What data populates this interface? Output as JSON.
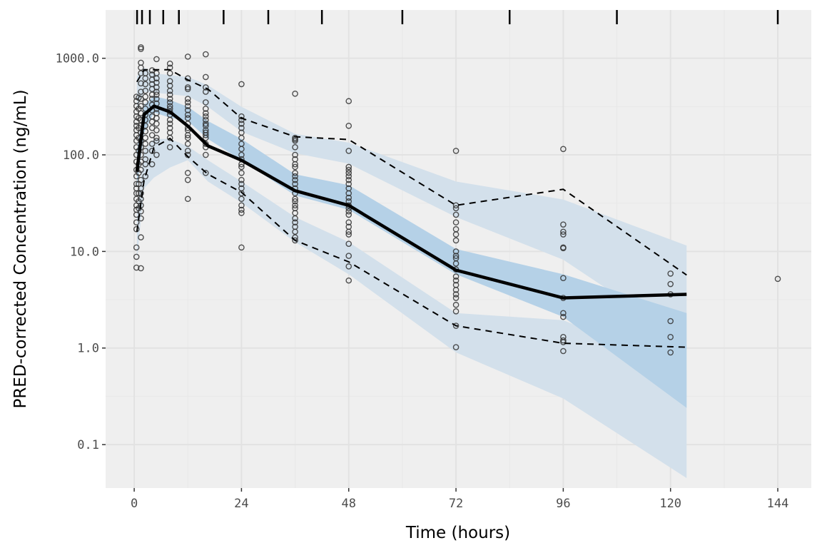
{
  "chart_data": {
    "type": "scatter",
    "xlabel": "Time (hours)",
    "ylabel": "PRED-corrected Concentration (ng/mL)",
    "xlim": [
      -6.4,
      151.5
    ],
    "ylim_log10": [
      -1.45,
      3.5
    ],
    "y_scale": "log10",
    "grid": true,
    "x_ticks": [
      0,
      24,
      48,
      72,
      96,
      120,
      144
    ],
    "x_tick_labels": [
      "0",
      "24",
      "48",
      "72",
      "96",
      "120",
      "144"
    ],
    "y_ticks": [
      1000,
      100,
      10,
      1,
      0.1
    ],
    "y_tick_labels": [
      "1000.0",
      "100.0",
      "10.0",
      "1.0",
      "0.1"
    ],
    "bin_boundaries_rug": [
      0.64,
      1.75,
      3.5,
      6.5,
      10,
      20,
      30,
      42,
      60,
      84,
      108,
      144
    ],
    "colors": {
      "panel": "#efefef",
      "grid": "#e2e2e2",
      "pi_band": "#d3e0eb",
      "median_band": "#b5d1e7",
      "lines": "#000000",
      "points": "#333333"
    },
    "bins": {
      "time": [
        0.6,
        2.2,
        4.4,
        8,
        12,
        16.5,
        24,
        36,
        48,
        72,
        96,
        123.6
      ],
      "obs_p95": [
        570,
        760,
        760,
        760,
        598,
        480,
        240,
        154,
        144,
        30,
        44,
        5.7
      ],
      "obs_p50": [
        67,
        261,
        320,
        279,
        199,
        124,
        88,
        42.5,
        30,
        6.4,
        3.3,
        3.6
      ],
      "obs_p05": [
        16,
        54,
        119,
        148,
        96,
        63,
        41,
        13,
        7.8,
        1.7,
        1.12,
        1.02
      ],
      "sim_p95_ci": [
        [
          300,
          650
        ],
        [
          450,
          800
        ],
        [
          441,
          700
        ],
        [
          425,
          670
        ],
        [
          405,
          640
        ],
        [
          315,
          525
        ],
        [
          174,
          315
        ],
        [
          104,
          165
        ],
        [
          81,
          134
        ],
        [
          22.7,
          53
        ],
        [
          8.2,
          34.5
        ],
        [
          1.16,
          11.5
        ]
      ],
      "sim_p50_ci": [
        [
          45,
          110
        ],
        [
          170,
          330
        ],
        [
          275,
          405
        ],
        [
          243,
          370
        ],
        [
          224,
          315
        ],
        [
          146,
          224
        ],
        [
          88,
          146
        ],
        [
          38,
          63
        ],
        [
          27,
          48.6
        ],
        [
          5.8,
          10.6
        ],
        [
          2.1,
          5.8
        ],
        [
          0.24,
          2.3
        ]
      ],
      "sim_p05_ci": [
        [
          8,
          25
        ],
        [
          45,
          110
        ],
        [
          58,
          146
        ],
        [
          74,
          146
        ],
        [
          88,
          123
        ],
        [
          53,
          88
        ],
        [
          32,
          53
        ],
        [
          12.5,
          22.7
        ],
        [
          5.8,
          12.5
        ],
        [
          0.9,
          2.3
        ],
        [
          0.3,
          1.94
        ],
        [
          0.045,
          0.59
        ]
      ]
    },
    "observations": [
      {
        "time": 0.5,
        "values": [
          400,
          360,
          320,
          280,
          250,
          220,
          200,
          180,
          160,
          140,
          120,
          100,
          85,
          70,
          60,
          50,
          45,
          40,
          35,
          30,
          27,
          24,
          20,
          17,
          11,
          8.8,
          6.8
        ]
      },
      {
        "time": 1,
        "values": [
          390,
          300,
          240,
          190,
          150,
          110,
          80,
          65,
          50,
          40,
          33,
          28
        ]
      },
      {
        "time": 1.5,
        "values": [
          1300,
          1250,
          900,
          800,
          700,
          550,
          450,
          380,
          320,
          270,
          230,
          200,
          170,
          140,
          120,
          100,
          85,
          70,
          55,
          45,
          40,
          35,
          30,
          26,
          22,
          14,
          6.7
        ]
      },
      {
        "time": 2.5,
        "values": [
          700,
          620,
          540,
          460,
          400,
          350,
          300,
          260,
          230,
          200,
          175,
          150,
          130,
          110,
          90,
          80,
          60
        ]
      },
      {
        "time": 4,
        "values": [
          750,
          680,
          600,
          540,
          480,
          420,
          380,
          330,
          290,
          250,
          220,
          190,
          160,
          130,
          110,
          80
        ]
      },
      {
        "time": 5,
        "values": [
          980,
          700,
          620,
          560,
          500,
          450,
          420,
          380,
          340,
          300,
          270,
          240,
          210,
          180,
          150,
          140,
          100
        ]
      },
      {
        "time": 8,
        "values": [
          880,
          800,
          700,
          580,
          520,
          460,
          420,
          380,
          350,
          320,
          300,
          280,
          260,
          230,
          210,
          190,
          170,
          150,
          120
        ]
      },
      {
        "time": 12,
        "values": [
          1040,
          620,
          500,
          480,
          380,
          350,
          320,
          290,
          260,
          240,
          210,
          190,
          180,
          160,
          150,
          130,
          110,
          100,
          65,
          55,
          35
        ]
      },
      {
        "time": 16,
        "values": [
          1100,
          640,
          500,
          450,
          350,
          300,
          270,
          250,
          230,
          210,
          200,
          180,
          170,
          160,
          150,
          130,
          120,
          100,
          65
        ]
      },
      {
        "time": 24,
        "values": [
          540,
          250,
          230,
          210,
          190,
          170,
          150,
          130,
          115,
          100,
          90,
          80,
          75,
          65,
          55,
          50,
          45,
          40,
          35,
          30,
          27,
          25,
          11
        ]
      },
      {
        "time": 36,
        "values": [
          430,
          150,
          145,
          140,
          120,
          100,
          90,
          80,
          75,
          65,
          60,
          55,
          50,
          45,
          40,
          35,
          33,
          30,
          28,
          25,
          22,
          20,
          18,
          16,
          14,
          13
        ]
      },
      {
        "time": 48,
        "values": [
          360,
          200,
          110,
          75,
          70,
          65,
          60,
          55,
          50,
          45,
          40,
          36,
          33,
          30,
          28,
          26,
          24,
          20,
          18,
          16,
          15,
          12,
          9,
          7,
          5
        ]
      },
      {
        "time": 72,
        "values": [
          110,
          30,
          28,
          24,
          20,
          17,
          15,
          13,
          10,
          9,
          8.5,
          7.5,
          6.5,
          5.5,
          5,
          4.5,
          4,
          3.6,
          3.3,
          2.8,
          2.4,
          1.7,
          1.02
        ]
      },
      {
        "time": 96,
        "values": [
          115,
          19,
          16,
          15,
          11,
          10.8,
          5.3,
          3.3,
          2.3,
          2.1,
          1.3,
          1.2,
          1.15,
          0.93
        ]
      },
      {
        "time": 120,
        "values": [
          5.9,
          4.6,
          3.6,
          1.9,
          1.3,
          0.9
        ]
      },
      {
        "time": 144,
        "values": [
          5.2
        ]
      }
    ]
  }
}
